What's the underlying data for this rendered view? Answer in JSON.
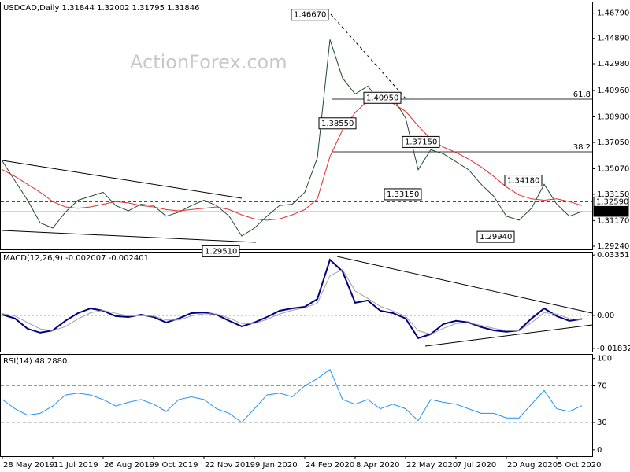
{
  "watermark": "ActionForex.com",
  "chart_data": [
    {
      "type": "line",
      "title": "USDCAD,Daily  1.31844 1.32002 1.31795 1.31846",
      "ylim": [
        1.29,
        1.476
      ],
      "yticks": [
        {
          "value": 1.4679,
          "label": "1.46790"
        },
        {
          "value": 1.4489,
          "label": "1.44890"
        },
        {
          "value": 1.4298,
          "label": "1.42980"
        },
        {
          "value": 1.4096,
          "label": "1.40960"
        },
        {
          "value": 1.3898,
          "label": "1.38980"
        },
        {
          "value": 1.3705,
          "label": "1.37050"
        },
        {
          "value": 1.3507,
          "label": "1.35070"
        },
        {
          "value": 1.3315,
          "label": "1.33150"
        },
        {
          "value": 1.3117,
          "label": "1.31170"
        },
        {
          "value": 1.2924,
          "label": "1.29240"
        }
      ],
      "series": [
        {
          "color": "#1d4d2e",
          "values": [
            1.3564,
            1.3416,
            1.327,
            1.31,
            1.306,
            1.318,
            1.327,
            1.33,
            1.333,
            1.323,
            1.319,
            1.324,
            1.323,
            1.315,
            1.318,
            1.323,
            1.327,
            1.323,
            1.315,
            1.3,
            1.306,
            1.315,
            1.323,
            1.324,
            1.333,
            1.359,
            1.448,
            1.419,
            1.407,
            1.413,
            1.401,
            1.404,
            1.389,
            1.35,
            1.365,
            1.362,
            1.356,
            1.35,
            1.339,
            1.33,
            1.315,
            1.312,
            1.321,
            1.339,
            1.324,
            1.315,
            1.3185
          ]
        },
        {
          "color": "#e03030",
          "values": [
            1.35,
            1.345,
            1.339,
            1.333,
            1.326,
            1.322,
            1.321,
            1.322,
            1.324,
            1.326,
            1.325,
            1.323,
            1.322,
            1.32,
            1.319,
            1.32,
            1.321,
            1.322,
            1.32,
            1.316,
            1.313,
            1.312,
            1.313,
            1.316,
            1.32,
            1.328,
            1.36,
            1.38,
            1.393,
            1.402,
            1.403,
            1.4,
            1.394,
            1.383,
            1.373,
            1.367,
            1.363,
            1.358,
            1.352,
            1.345,
            1.337,
            1.331,
            1.328,
            1.327,
            1.328,
            1.326,
            1.323
          ]
        }
      ],
      "annotations": [
        {
          "value": 1.4667,
          "label": "1.46670"
        },
        {
          "value": 1.3855,
          "label": "1.38550"
        },
        {
          "value": 1.4095,
          "label": "1.40950"
        },
        {
          "value": 1.3715,
          "label": "1.37150"
        },
        {
          "value": 1.3315,
          "label": "1.33150"
        },
        {
          "value": 1.3418,
          "label": "1.34180"
        },
        {
          "value": 1.2994,
          "label": "1.29940"
        },
        {
          "value": 1.2951,
          "label": "1.29510"
        }
      ],
      "markers": [
        {
          "value": 1.3259,
          "label": "1.32590",
          "style": "dashed"
        },
        {
          "value": 1.31846,
          "label": "1.31846",
          "style": "current"
        }
      ],
      "fib_levels": [
        61.8,
        38.2
      ]
    },
    {
      "type": "line",
      "title": "MACD(12,26,9) -0.002007 -0.002401",
      "ylim": [
        -0.0201,
        0.0349
      ],
      "yticks": [
        0.033515,
        {
          "value": 0,
          "label": "0.00"
        },
        -0.018324
      ],
      "zero_line": true,
      "series": [
        {
          "color": "#000080",
          "values": [
            0.0004,
            -0.0017,
            -0.0074,
            -0.0096,
            -0.0083,
            -0.003,
            0.0013,
            0.0039,
            0.0026,
            -0.0004,
            -0.0009,
            0.0004,
            -0.0009,
            -0.0039,
            -0.0017,
            0.0013,
            0.0017,
            0.0004,
            -0.003,
            -0.0061,
            -0.0039,
            -0.0009,
            0.0026,
            0.0039,
            0.0048,
            0.0091,
            0.0309,
            0.0244,
            0.007,
            0.0083,
            0.0026,
            0.0013,
            -0.0017,
            -0.0126,
            -0.0104,
            -0.0048,
            -0.003,
            -0.0039,
            -0.0065,
            -0.0083,
            -0.0091,
            -0.0083,
            -0.0017,
            0.0039,
            -0.0004,
            -0.003,
            -0.002
          ]
        },
        {
          "color": "#a0a0a0",
          "values": [
            0.001,
            -0.0003,
            -0.004,
            -0.0075,
            -0.0085,
            -0.0062,
            -0.002,
            0.0015,
            0.0028,
            0.0012,
            -0.0003,
            -0.0002,
            -0.0004,
            -0.0025,
            -0.0025,
            -0.0003,
            0.001,
            0.0008,
            -0.0015,
            -0.0045,
            -0.0045,
            -0.0022,
            0.0008,
            0.0028,
            0.0042,
            0.0068,
            0.022,
            0.0255,
            0.0135,
            0.0095,
            0.005,
            0.0025,
            -0.0005,
            -0.0085,
            -0.0105,
            -0.0072,
            -0.0045,
            -0.004,
            -0.0055,
            -0.0072,
            -0.0085,
            -0.0085,
            -0.004,
            0.0015,
            0.0008,
            -0.0018,
            -0.0024
          ]
        }
      ]
    },
    {
      "type": "line",
      "title": "RSI(14) 48.2880",
      "ylim": [
        -7,
        104
      ],
      "yticks": [
        100,
        70,
        30,
        0
      ],
      "levels": [
        70,
        30
      ],
      "categories": [
        "28 May 2019",
        null,
        null,
        null,
        "11 Jul 2019",
        null,
        null,
        null,
        "26 Aug 2019",
        null,
        null,
        null,
        "9 Oct 2019",
        null,
        null,
        null,
        "22 Nov 2019",
        null,
        null,
        null,
        "9 Jan 2020",
        null,
        null,
        null,
        "24 Feb 2020",
        null,
        null,
        null,
        "8 Apr 2020",
        null,
        null,
        null,
        "22 May 2020",
        null,
        null,
        null,
        "7 Jul 2020",
        null,
        null,
        null,
        "20 Aug 2020",
        null,
        null,
        null,
        "5 Oct 2020",
        null,
        null
      ],
      "series": [
        {
          "color": "#1e90ff",
          "values": [
            55,
            45,
            38,
            40,
            48,
            60,
            62,
            60,
            55,
            48,
            52,
            55,
            50,
            42,
            55,
            58,
            55,
            45,
            40,
            30,
            45,
            60,
            62,
            58,
            70,
            78,
            88,
            55,
            50,
            55,
            45,
            50,
            45,
            32,
            55,
            52,
            50,
            45,
            40,
            40,
            35,
            35,
            50,
            65,
            45,
            42,
            48.3
          ]
        }
      ]
    }
  ]
}
